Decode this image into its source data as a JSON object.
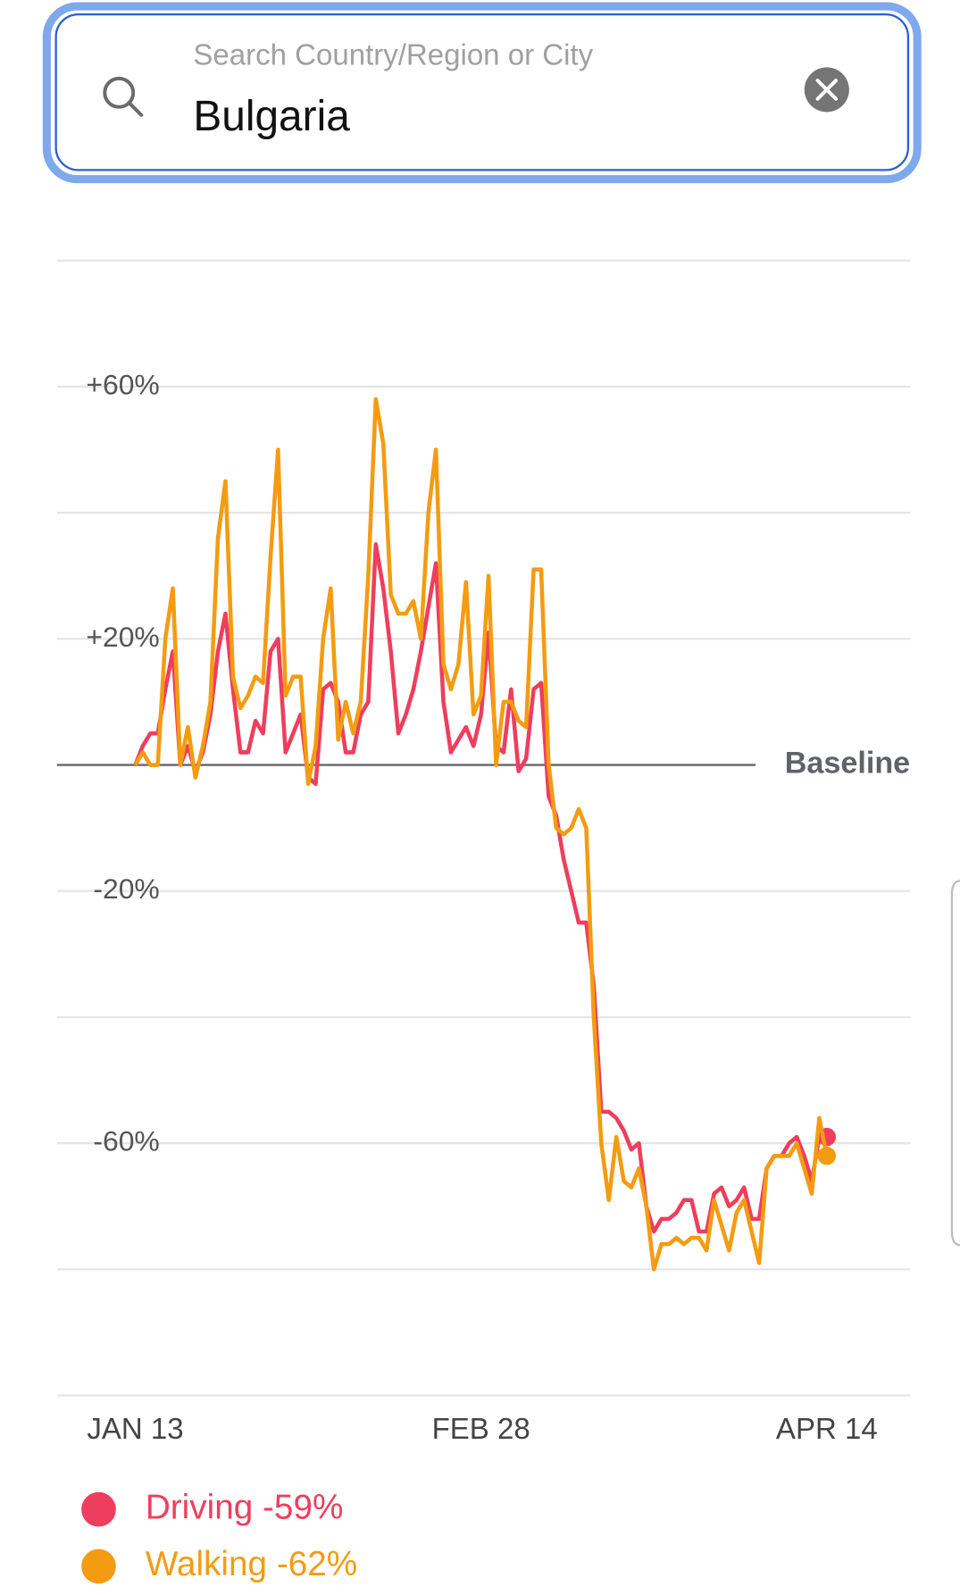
{
  "search": {
    "placeholder": "Search Country/Region or City",
    "query": "Bulgaria"
  },
  "chart_data": {
    "type": "line",
    "categories": [
      "JAN 13",
      null,
      null,
      null,
      null,
      null,
      null,
      null,
      null,
      null,
      null,
      null,
      null,
      null,
      null,
      null,
      null,
      null,
      null,
      null,
      null,
      null,
      null,
      null,
      null,
      null,
      null,
      null,
      null,
      null,
      null,
      null,
      null,
      null,
      null,
      null,
      null,
      null,
      null,
      null,
      null,
      null,
      null,
      null,
      null,
      null,
      "FEB 28",
      null,
      null,
      null,
      null,
      null,
      null,
      null,
      null,
      null,
      null,
      null,
      null,
      null,
      null,
      null,
      null,
      null,
      null,
      null,
      null,
      null,
      null,
      null,
      null,
      null,
      null,
      null,
      null,
      null,
      null,
      null,
      null,
      null,
      null,
      null,
      null,
      null,
      null,
      null,
      null,
      null,
      null,
      null,
      null,
      null,
      "APR 14"
    ],
    "series": [
      {
        "name": "Driving -59%",
        "color": "#ee3e5e",
        "values": [
          0,
          3,
          5,
          5,
          12,
          18,
          0,
          3,
          -1,
          2,
          8,
          18,
          24,
          12,
          2,
          2,
          7,
          5,
          18,
          20,
          2,
          5,
          8,
          -2,
          -3,
          12,
          13,
          10,
          2,
          2,
          8,
          10,
          35,
          28,
          18,
          5,
          8,
          12,
          18,
          25,
          32,
          10,
          2,
          4,
          6,
          3,
          8,
          21,
          3,
          2,
          12,
          -1,
          1,
          12,
          13,
          -5,
          -8,
          -15,
          -20,
          -25,
          -25,
          -35,
          -55,
          -55,
          -56,
          -58,
          -61,
          -60,
          -70,
          -74,
          -72,
          -72,
          -71,
          -69,
          -69,
          -74,
          -74,
          -68,
          -67,
          -70,
          -69,
          -67,
          -72,
          -72,
          -64,
          -62,
          -62,
          -60,
          -59,
          -62,
          -66,
          -59,
          -59
        ]
      },
      {
        "name": "Walking -62%",
        "color": "#f39c12",
        "values": [
          0,
          2,
          0,
          0,
          20,
          28,
          0,
          6,
          -2,
          3,
          10,
          36,
          45,
          14,
          9,
          11,
          14,
          13,
          33,
          50,
          11,
          14,
          14,
          -3,
          3,
          20,
          28,
          4,
          10,
          5,
          10,
          30,
          58,
          51,
          27,
          24,
          24,
          26,
          20,
          40,
          50,
          16,
          12,
          16,
          29,
          8,
          11,
          30,
          0,
          10,
          10,
          7,
          6,
          31,
          31,
          0,
          -10,
          -11,
          -10,
          -7,
          -10,
          -40,
          -60,
          -69,
          -59,
          -66,
          -67,
          -64,
          -70,
          -80,
          -76,
          -76,
          -75,
          -76,
          -75,
          -75,
          -77,
          -69,
          -73,
          -77,
          -71,
          -69,
          -74,
          -79,
          -64,
          -62,
          -62,
          -62,
          -60,
          -64,
          -68,
          -56,
          -62
        ]
      }
    ],
    "ylim": [
      -100,
      80
    ],
    "yticks": [
      {
        "value": 60,
        "label": "+60%"
      },
      {
        "value": 20,
        "label": "+20%"
      },
      {
        "value": -20,
        "label": "-20%"
      },
      {
        "value": -60,
        "label": "-60%"
      }
    ],
    "ygrid": [
      80,
      60,
      40,
      20,
      -20,
      -40,
      -60,
      -80,
      -100
    ],
    "baseline": {
      "value": 0,
      "label": "Baseline"
    },
    "legend": "bottom-left"
  }
}
